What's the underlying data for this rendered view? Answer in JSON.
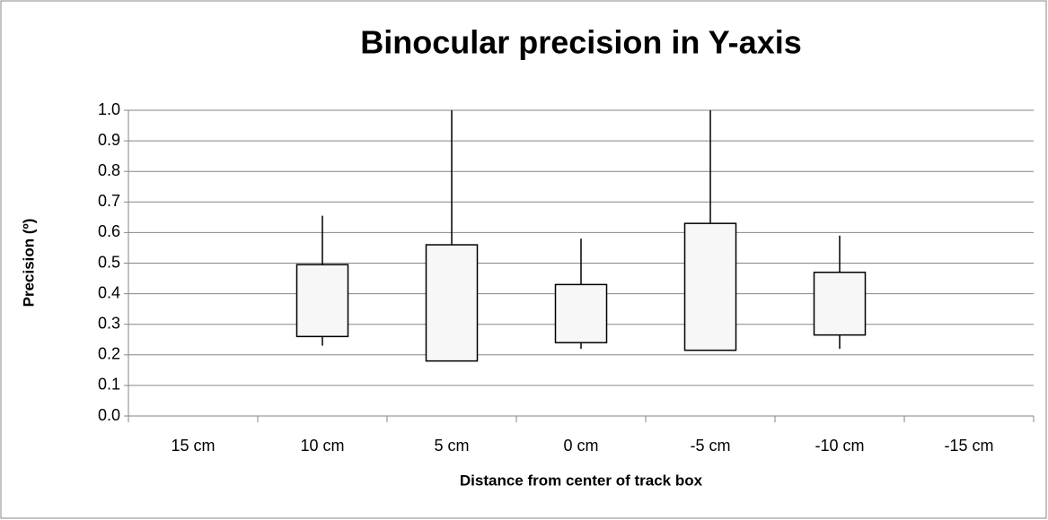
{
  "chart_data": {
    "type": "box",
    "title": "Binocular precision in Y-axis",
    "x_label": "Distance from center of track box",
    "y_label": "Precision (º)",
    "categories": [
      "15 cm",
      "10 cm",
      "5 cm",
      "0 cm",
      "-5 cm",
      "-10 cm",
      "-15 cm"
    ],
    "boxes": [
      {
        "min": 0,
        "q1": 0,
        "q3": 0,
        "max": 0
      },
      {
        "min": 0.23,
        "q1": 0.26,
        "q3": 0.495,
        "max": 0.655
      },
      {
        "min": 0.18,
        "q1": 0.18,
        "q3": 0.56,
        "max": 1.0
      },
      {
        "min": 0.22,
        "q1": 0.24,
        "q3": 0.43,
        "max": 0.58
      },
      {
        "min": 0.215,
        "q1": 0.215,
        "q3": 0.63,
        "max": 1.0
      },
      {
        "min": 0.22,
        "q1": 0.265,
        "q3": 0.47,
        "max": 0.59
      },
      {
        "min": 0,
        "q1": 0,
        "q3": 0,
        "max": 0
      }
    ],
    "color": "#f7f7f7",
    "ylim": [
      0,
      1
    ],
    "yticks": [
      {
        "value": 0,
        "label": "0.0"
      },
      {
        "value": 0.1,
        "label": "0.1"
      },
      {
        "value": 0.2,
        "label": "0.2"
      },
      {
        "value": 0.3,
        "label": "0.3"
      },
      {
        "value": 0.4,
        "label": "0.4"
      },
      {
        "value": 0.5,
        "label": "0.5"
      },
      {
        "value": 0.6,
        "label": "0.6"
      },
      {
        "value": 0.7,
        "label": "0.7"
      },
      {
        "value": 0.8,
        "label": "0.8"
      },
      {
        "value": 0.9,
        "label": "0.9"
      },
      {
        "value": 1,
        "label": "1.0"
      }
    ],
    "grid": true
  }
}
